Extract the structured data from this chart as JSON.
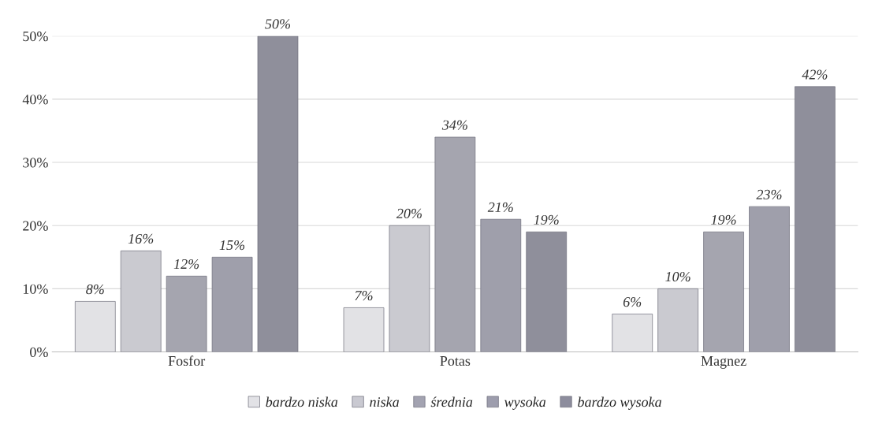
{
  "chart_data": {
    "type": "bar",
    "categories": [
      "Fosfor",
      "Potas",
      "Magnez"
    ],
    "series": [
      {
        "name": "bardzo niska",
        "color": "#e2e2e6",
        "values": [
          8,
          7,
          6
        ],
        "value_labels": [
          "8%",
          "7%",
          "6%"
        ]
      },
      {
        "name": "niska",
        "color": "#c9c9d1",
        "values": [
          16,
          20,
          10
        ],
        "value_labels": [
          "16%",
          "20%",
          "10%"
        ]
      },
      {
        "name": "średnia",
        "color": "#a3a3b1",
        "values": [
          12,
          34,
          19
        ],
        "value_labels": [
          "12%",
          "34%",
          "19%"
        ]
      },
      {
        "name": "wysoka",
        "color": "#9d9dad",
        "values": [
          15,
          21,
          23
        ],
        "value_labels": [
          "15%",
          "21%",
          "23%"
        ]
      },
      {
        "name": "bardzo wysoka",
        "color": "#8d8d9d",
        "values": [
          50,
          19,
          42
        ],
        "value_labels": [
          "50%",
          "19%",
          "42%"
        ]
      }
    ],
    "ylim": [
      0,
      50
    ],
    "yticks": [
      {
        "value": 0,
        "label": "0%"
      },
      {
        "value": 10,
        "label": "10%"
      },
      {
        "value": 20,
        "label": "20%"
      },
      {
        "value": 30,
        "label": "30%"
      },
      {
        "value": 40,
        "label": "40%"
      },
      {
        "value": 50,
        "label": "50%"
      }
    ],
    "grid": "y",
    "legend": "bottom"
  }
}
